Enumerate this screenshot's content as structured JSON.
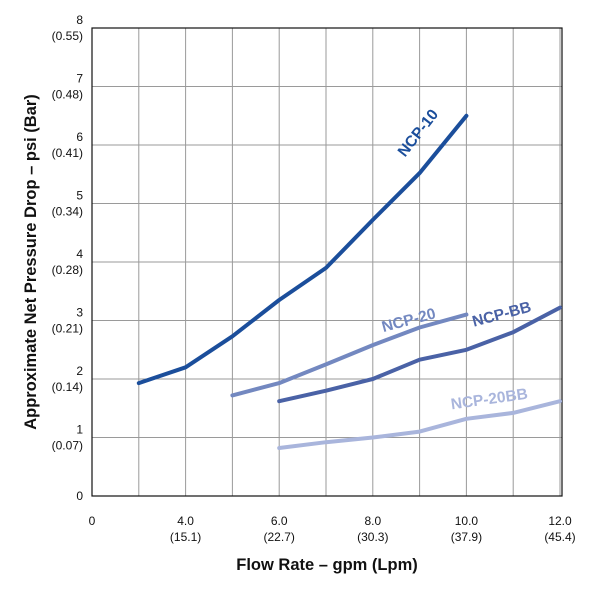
{
  "chart_data": {
    "type": "line",
    "xlabel": "Flow Rate – gpm (Lpm)",
    "ylabel": "Approximate Net Pressure Drop – psi (Bar)",
    "xlim": [
      2,
      12.5
    ],
    "ylim": [
      0,
      8
    ],
    "grid": true,
    "x_ticks": [
      {
        "value": 2,
        "label": "0",
        "sub": ""
      },
      {
        "value": 4,
        "label": "4.0",
        "sub": "(15.1)"
      },
      {
        "value": 6,
        "label": "6.0",
        "sub": "(22.7)"
      },
      {
        "value": 8,
        "label": "8.0",
        "sub": "(30.3)"
      },
      {
        "value": 10,
        "label": "10.0",
        "sub": "(37.9)"
      },
      {
        "value": 12,
        "label": "12.0",
        "sub": "(45.4)"
      }
    ],
    "y_ticks": [
      {
        "value": 0,
        "label": "0",
        "sub": ""
      },
      {
        "value": 1,
        "label": "1",
        "sub": "(0.07)"
      },
      {
        "value": 2,
        "label": "2",
        "sub": "(0.14)"
      },
      {
        "value": 3,
        "label": "3",
        "sub": "(0.21)"
      },
      {
        "value": 4,
        "label": "4",
        "sub": "(0.28)"
      },
      {
        "value": 5,
        "label": "5",
        "sub": "(0.34)"
      },
      {
        "value": 6,
        "label": "6",
        "sub": "(0.41)"
      },
      {
        "value": 7,
        "label": "7",
        "sub": "(0.48)"
      },
      {
        "value": 8,
        "label": "8",
        "sub": "(0.55)"
      }
    ],
    "series": [
      {
        "name": "NCP-10",
        "color": "#1b4e9b",
        "x": [
          3.0,
          4.0,
          5.0,
          6.0,
          7.0,
          8.0,
          9.0,
          10.0
        ],
        "y": [
          1.93,
          2.2,
          2.73,
          3.35,
          3.9,
          4.72,
          5.52,
          6.5
        ]
      },
      {
        "name": "NCP-20",
        "color": "#7388c0",
        "x": [
          5.0,
          6.0,
          7.0,
          8.0,
          9.0,
          10.0
        ],
        "y": [
          1.72,
          1.93,
          2.25,
          2.58,
          2.88,
          3.1
        ]
      },
      {
        "name": "NCP-BB",
        "color": "#4a62a6",
        "x": [
          6.0,
          7.0,
          8.0,
          9.0,
          10.0,
          11.0,
          12.0
        ],
        "y": [
          1.62,
          1.8,
          2.0,
          2.33,
          2.5,
          2.8,
          3.22
        ]
      },
      {
        "name": "NCP-20BB",
        "color": "#a9b5dc",
        "x": [
          6.0,
          7.0,
          8.0,
          9.0,
          10.0,
          11.0,
          12.0
        ],
        "y": [
          0.82,
          0.92,
          1.0,
          1.1,
          1.32,
          1.42,
          1.62
        ]
      }
    ]
  }
}
